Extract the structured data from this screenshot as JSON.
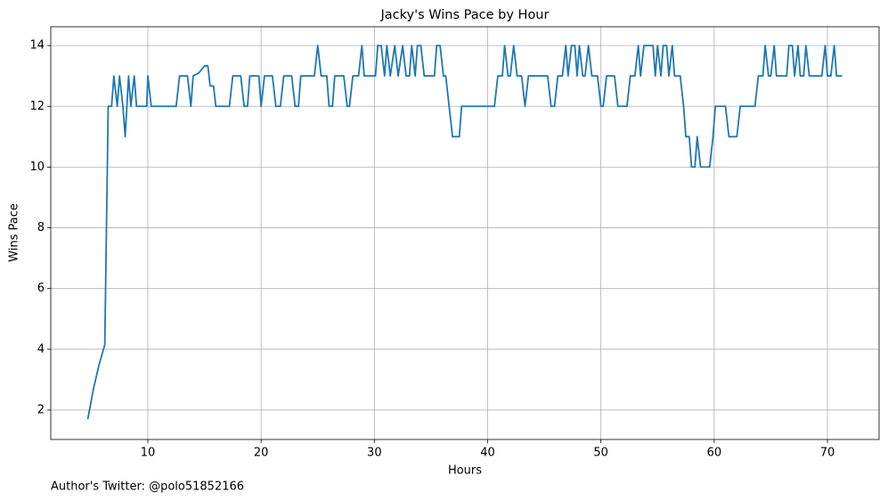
{
  "chart_data": {
    "type": "line",
    "title": "Jacky's Wins Pace by Hour",
    "x_label": "Hours",
    "y_label": "Wins Pace",
    "annotation": "Author's Twitter: @polo51852166",
    "x": [
      4.7,
      5.2,
      5.7,
      6.2,
      6.5,
      6.8,
      7.0,
      7.3,
      7.5,
      7.8,
      8.0,
      8.3,
      8.5,
      8.8,
      9.0,
      9.5,
      9.9,
      10.0,
      10.3,
      12.5,
      12.8,
      13.5,
      13.8,
      14.0,
      14.5,
      15.0,
      15.3,
      15.5,
      15.8,
      16.0,
      17.2,
      17.5,
      18.2,
      18.5,
      18.8,
      19.0,
      19.8,
      20.0,
      20.3,
      21.0,
      21.3,
      21.7,
      22.0,
      22.7,
      23.0,
      23.3,
      23.5,
      24.7,
      25.0,
      25.3,
      25.8,
      26.0,
      26.3,
      26.5,
      27.3,
      27.6,
      27.8,
      28.1,
      28.6,
      28.9,
      29.1,
      30.1,
      30.3,
      30.6,
      30.9,
      31.1,
      31.4,
      31.8,
      32.1,
      32.5,
      32.8,
      33.1,
      33.3,
      33.6,
      33.8,
      34.1,
      34.4,
      35.3,
      35.5,
      35.8,
      36.1,
      36.3,
      36.6,
      36.9,
      37.5,
      37.7,
      40.6,
      40.9,
      41.3,
      41.5,
      41.8,
      42.0,
      42.3,
      42.6,
      43.0,
      43.3,
      43.6,
      45.3,
      45.6,
      45.9,
      46.2,
      46.6,
      46.9,
      47.1,
      47.4,
      47.7,
      47.9,
      48.1,
      48.4,
      48.6,
      48.9,
      49.2,
      49.7,
      50.0,
      50.2,
      50.5,
      51.2,
      51.5,
      52.3,
      52.6,
      53.0,
      53.3,
      53.5,
      53.8,
      54.6,
      54.8,
      55.0,
      55.3,
      55.5,
      55.8,
      56.0,
      56.3,
      56.5,
      57.0,
      57.3,
      57.5,
      57.8,
      58.0,
      58.3,
      58.5,
      58.8,
      59.6,
      59.9,
      60.1,
      61.0,
      61.3,
      62.0,
      62.3,
      63.6,
      63.9,
      64.3,
      64.5,
      64.8,
      65.0,
      65.3,
      65.5,
      66.4,
      66.6,
      66.9,
      67.1,
      67.4,
      67.6,
      67.9,
      68.1,
      68.4,
      69.5,
      69.8,
      70.0,
      70.3,
      70.6,
      70.8,
      71.3
    ],
    "values": [
      1.7,
      2.7,
      3.5,
      4.15,
      12,
      12,
      13,
      12,
      13,
      12,
      11,
      13,
      12,
      13,
      12,
      12,
      12,
      13,
      12,
      12,
      13,
      13,
      12,
      13,
      13.1,
      13.33,
      13.33,
      12.67,
      12.67,
      12,
      12,
      13,
      13,
      12,
      12,
      13,
      13,
      12,
      13,
      13,
      12,
      12,
      13,
      13,
      12,
      12,
      13,
      13,
      14,
      13,
      13,
      12,
      12,
      13,
      13,
      12,
      12,
      13,
      13,
      14,
      13,
      13,
      14,
      14,
      13,
      14,
      13,
      14,
      13,
      14,
      13,
      13,
      14,
      13,
      14,
      14,
      13,
      13,
      14,
      14,
      13,
      13,
      12,
      11,
      11,
      12,
      12,
      13,
      13,
      14,
      13,
      13,
      14,
      13,
      13,
      12,
      13,
      13,
      12,
      12,
      13,
      13,
      14,
      13,
      14,
      14,
      13,
      14,
      13,
      13,
      14,
      13,
      13,
      12,
      12,
      13,
      13,
      12,
      12,
      13,
      13,
      14,
      13,
      14,
      14,
      13,
      14,
      13,
      14,
      14,
      13,
      14,
      13,
      13,
      12,
      11,
      11,
      10,
      10,
      11,
      10,
      10,
      11,
      12,
      12,
      11,
      11,
      12,
      12,
      13,
      13,
      14,
      13,
      13,
      14,
      13,
      13,
      14,
      14,
      13,
      14,
      13,
      13,
      14,
      13,
      13,
      14,
      13,
      13,
      14,
      13,
      13
    ],
    "color": "#1f77b4",
    "xlim": [
      1.43,
      74.56
    ],
    "ylim": [
      1.03,
      14.62
    ],
    "xticks": [
      10,
      20,
      30,
      40,
      50,
      60,
      70
    ],
    "yticks": [
      2,
      4,
      6,
      8,
      10,
      12,
      14
    ],
    "grid": true
  }
}
